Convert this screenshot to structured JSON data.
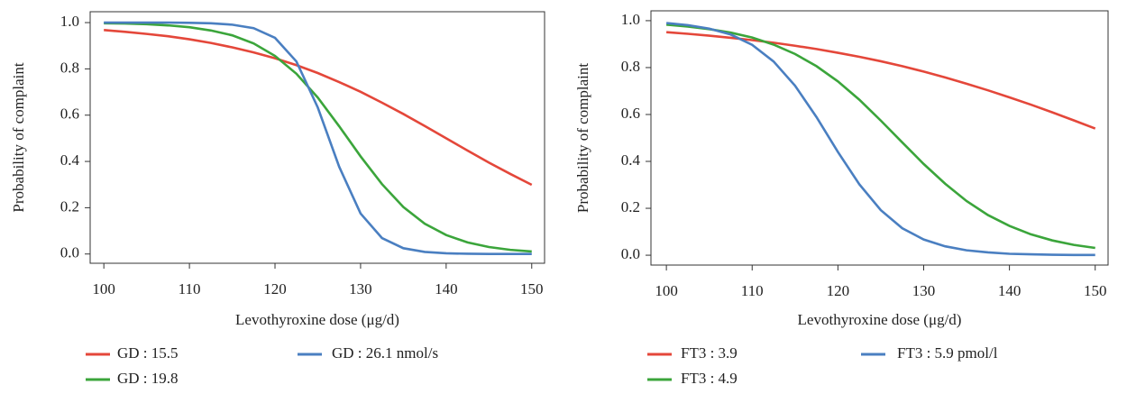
{
  "chart_data": [
    {
      "type": "line",
      "xlabel": "Levothyroxine dose (μg/d)",
      "ylabel": "Probability of complaint",
      "x": [
        100,
        102.5,
        105,
        107.5,
        110,
        112.5,
        115,
        117.5,
        120,
        122.5,
        125,
        127.5,
        130,
        132.5,
        135,
        137.5,
        140,
        142.5,
        145,
        147.5,
        150
      ],
      "series": [
        {
          "name": "GD : 15.5",
          "color": "#e4473a",
          "values": [
            0.968,
            0.96,
            0.951,
            0.941,
            0.928,
            0.912,
            0.893,
            0.871,
            0.846,
            0.816,
            0.782,
            0.743,
            0.701,
            0.654,
            0.605,
            0.553,
            0.5,
            0.447,
            0.395,
            0.346,
            0.299
          ]
        },
        {
          "name": "GD : 19.8",
          "color": "#3ba53b",
          "values": [
            0.997,
            0.996,
            0.993,
            0.988,
            0.98,
            0.966,
            0.945,
            0.91,
            0.856,
            0.779,
            0.676,
            0.552,
            0.422,
            0.302,
            0.203,
            0.131,
            0.082,
            0.05,
            0.03,
            0.018,
            0.011
          ]
        },
        {
          "name": "GD : 26.1 nmol/s",
          "color": "#4a7fc1",
          "values": [
            1,
            1,
            1,
            1,
            0.999,
            0.997,
            0.991,
            0.976,
            0.934,
            0.832,
            0.633,
            0.377,
            0.175,
            0.069,
            0.025,
            0.009,
            0.003,
            0.001,
            0,
            0,
            0
          ]
        }
      ],
      "xlim": [
        98.4,
        151.5
      ],
      "ylim": [
        -0.04,
        1.047
      ],
      "xticks": [
        100,
        110,
        120,
        130,
        140,
        150
      ],
      "yticks": [
        {
          "value": 0,
          "label": "0.0"
        },
        0.2,
        0.4,
        0.6,
        0.8,
        {
          "value": 1,
          "label": "1.0"
        }
      ]
    },
    {
      "type": "line",
      "xlabel": "Levothyroxine dose (μg/d)",
      "ylabel": "Probability of complaint",
      "x": [
        100,
        102.5,
        105,
        107.5,
        110,
        112.5,
        115,
        117.5,
        120,
        122.5,
        125,
        127.5,
        130,
        132.5,
        135,
        137.5,
        140,
        142.5,
        145,
        147.5,
        150
      ],
      "series": [
        {
          "name": "FT3 : 3.9",
          "color": "#e4473a",
          "values": [
            0.951,
            0.944,
            0.936,
            0.927,
            0.917,
            0.906,
            0.893,
            0.879,
            0.863,
            0.846,
            0.827,
            0.806,
            0.783,
            0.758,
            0.731,
            0.703,
            0.673,
            0.642,
            0.609,
            0.575,
            0.54
          ]
        },
        {
          "name": "FT3 : 4.9",
          "color": "#3ba53b",
          "values": [
            0.983,
            0.975,
            0.964,
            0.949,
            0.928,
            0.898,
            0.858,
            0.806,
            0.741,
            0.663,
            0.574,
            0.481,
            0.389,
            0.305,
            0.231,
            0.171,
            0.125,
            0.089,
            0.063,
            0.044,
            0.031
          ]
        },
        {
          "name": "FT3 : 5.9 pmol/l",
          "color": "#4a7fc1",
          "values": [
            0.99,
            0.981,
            0.966,
            0.941,
            0.897,
            0.826,
            0.723,
            0.589,
            0.44,
            0.302,
            0.192,
            0.115,
            0.067,
            0.038,
            0.021,
            0.012,
            0.006,
            0.004,
            0.002,
            0.001,
            0.001
          ]
        }
      ],
      "xlim": [
        98.2,
        151.5
      ],
      "ylim": [
        -0.042,
        1.042
      ],
      "xticks": [
        100,
        110,
        120,
        130,
        140,
        150
      ],
      "yticks": [
        {
          "value": 0,
          "label": "0.0"
        },
        0.2,
        0.4,
        0.6,
        0.8,
        {
          "value": 1,
          "label": "1.0"
        }
      ]
    }
  ]
}
